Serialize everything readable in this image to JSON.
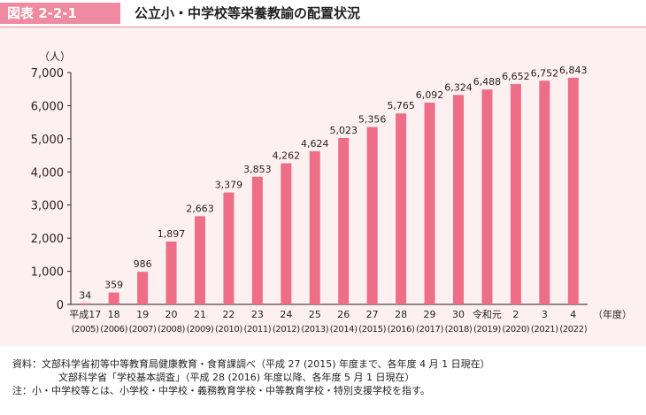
{
  "header": {
    "figure_label": "図表 2-2-1",
    "title": "公立小・中学校等栄養教諭の配置状況"
  },
  "chart_data": {
    "type": "bar",
    "title": "公立小・中学校等栄養教諭の配置状況",
    "ylabel": "（人）",
    "xlabel": "（年度）",
    "ylim": [
      0,
      7000
    ],
    "yticks": [
      "0",
      "1,000",
      "2,000",
      "3,000",
      "4,000",
      "5,000",
      "6,000",
      "7,000"
    ],
    "categories": [
      {
        "era": "平成17",
        "year": "(2005)"
      },
      {
        "era": "18",
        "year": "(2006)"
      },
      {
        "era": "19",
        "year": "(2007)"
      },
      {
        "era": "20",
        "year": "(2008)"
      },
      {
        "era": "21",
        "year": "(2009)"
      },
      {
        "era": "22",
        "year": "(2010)"
      },
      {
        "era": "23",
        "year": "(2011)"
      },
      {
        "era": "24",
        "year": "(2012)"
      },
      {
        "era": "25",
        "year": "(2013)"
      },
      {
        "era": "26",
        "year": "(2014)"
      },
      {
        "era": "27",
        "year": "(2015)"
      },
      {
        "era": "28",
        "year": "(2016)"
      },
      {
        "era": "29",
        "year": "(2017)"
      },
      {
        "era": "30",
        "year": "(2018)"
      },
      {
        "era": "令和元",
        "year": "(2019)"
      },
      {
        "era": "2",
        "year": "(2020)"
      },
      {
        "era": "3",
        "year": "(2021)"
      },
      {
        "era": "4",
        "year": "(2022)"
      }
    ],
    "values": [
      34,
      359,
      986,
      1897,
      2663,
      3379,
      3853,
      4262,
      4624,
      5023,
      5356,
      5765,
      6092,
      6324,
      6488,
      6652,
      6752,
      6843
    ],
    "value_labels": [
      "34",
      "359",
      "986",
      "1,897",
      "2,663",
      "3,379",
      "3,853",
      "4,262",
      "4,624",
      "5,023",
      "5,356",
      "5,765",
      "6,092",
      "6,324",
      "6,488",
      "6,652",
      "6,752",
      "6,843"
    ],
    "bar_color": "#ee6e88",
    "grid": false
  },
  "notes": [
    "資料：文部科学省初等中等教育局健康教育・食育課調べ（平成 27 (2015) 年度まで、各年度 4 月 1 日現在）",
    "文部科学省「学校基本調査」（平成 28 (2016) 年度以降、各年度 5 月 1 日現在）",
    "注：小・中学校等とは、小学校・中学校・義務教育学校・中等教育学校・特別支援学校を指す。"
  ]
}
